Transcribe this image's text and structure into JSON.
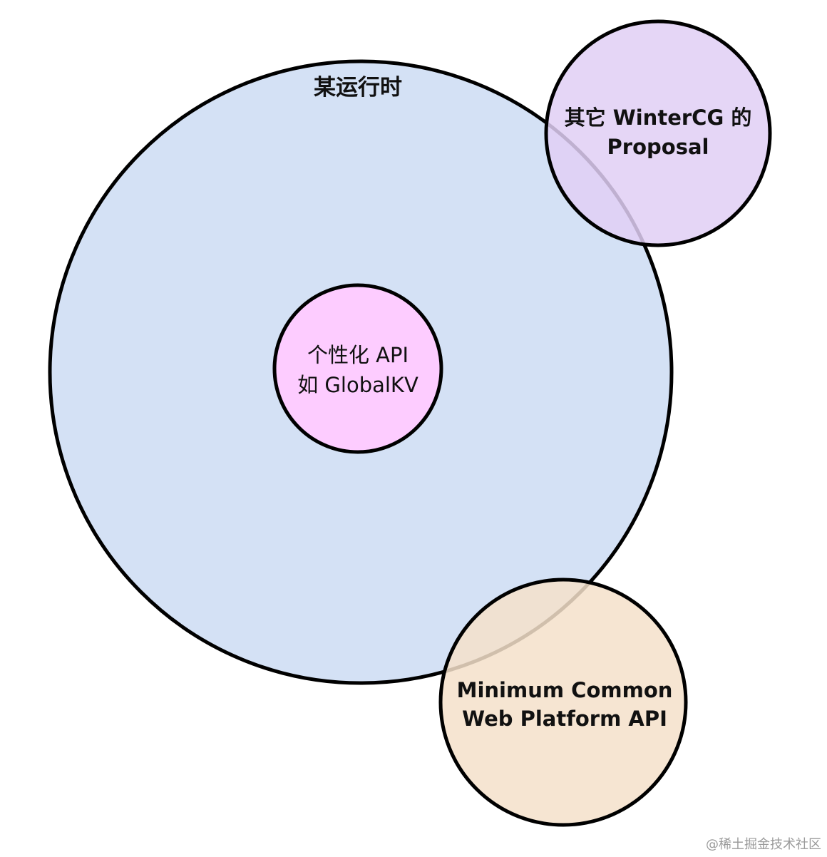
{
  "diagram": {
    "runtime": {
      "label": "某运行时",
      "fill": "#d4e1f5"
    },
    "proposal": {
      "line1": "其它 WinterCG 的",
      "line2": "Proposal",
      "fill": "#e1cff5"
    },
    "custom_api": {
      "line1": "个性化 API",
      "line2": "如 GlobalKV",
      "fill": "#fdccff"
    },
    "min_common": {
      "line1": "Minimum Common",
      "line2": "Web Platform API",
      "fill": "#f5e1ca"
    }
  },
  "watermark": {
    "text": "@稀土掘金技术社区"
  }
}
